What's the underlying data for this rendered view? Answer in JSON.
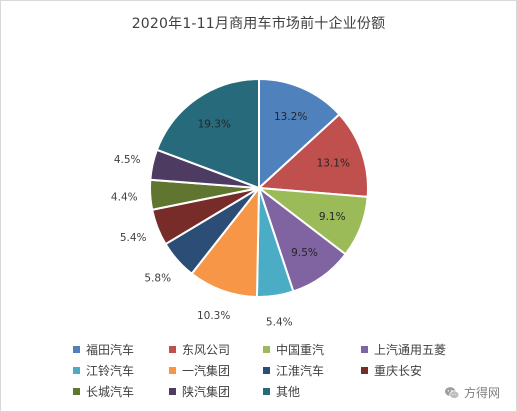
{
  "chart_data": {
    "type": "pie",
    "title": "2020年1-11月商用车市场前十企业份额",
    "series": [
      {
        "name": "福田汽车",
        "value": 13.2,
        "label": "13.2%",
        "color": "#4F81BD"
      },
      {
        "name": "东风公司",
        "value": 13.1,
        "label": "13.1%",
        "color": "#C0504D"
      },
      {
        "name": "中国重汽",
        "value": 9.1,
        "label": "9.1%",
        "color": "#9BBB59"
      },
      {
        "name": "上汽通用五菱",
        "value": 9.5,
        "label": "9.5%",
        "color": "#8064A2"
      },
      {
        "name": "江铃汽车",
        "value": 5.4,
        "label": "5.4%",
        "color": "#4BACC6"
      },
      {
        "name": "一汽集团",
        "value": 10.3,
        "label": "10.3%",
        "color": "#F79646"
      },
      {
        "name": "江淮汽车",
        "value": 5.8,
        "label": "5.8%",
        "color": "#2C4D75"
      },
      {
        "name": "重庆长安",
        "value": 5.4,
        "label": "5.4%",
        "color": "#772C2A"
      },
      {
        "name": "长城汽车",
        "value": 4.4,
        "label": "4.4%",
        "color": "#5F7530"
      },
      {
        "name": "陕汽集团",
        "value": 4.5,
        "label": "4.5%",
        "color": "#4D3B62"
      },
      {
        "name": "其他",
        "value": 19.3,
        "label": "19.3%",
        "color": "#276A7C"
      }
    ],
    "legend_placement": "bottom"
  },
  "watermark": {
    "text": "方得网",
    "icon": "wechat-icon"
  }
}
